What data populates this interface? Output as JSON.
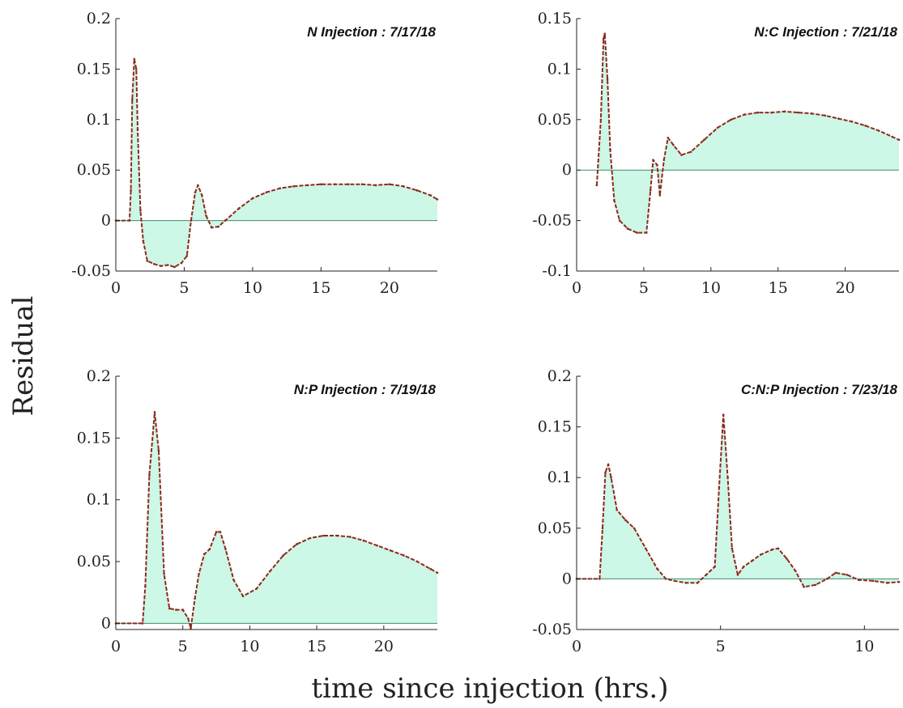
{
  "figure": {
    "ylabel": "Residual",
    "xlabel": "time since injection (hrs.)",
    "fill_color": "#cdf7e6",
    "line_color": "#8b2a1e",
    "zero_line_color": "#3d8f6a"
  },
  "chart_data": [
    {
      "type": "area",
      "title": "N Injection : 7/17/18",
      "xlim": [
        0,
        23.5
      ],
      "ylim": [
        -0.05,
        0.2
      ],
      "xticks": [
        0,
        5,
        10,
        15,
        20
      ],
      "yticks": [
        -0.05,
        0,
        0.05,
        0.1,
        0.15,
        0.2
      ],
      "xtick_labels": [
        "0",
        "5",
        "10",
        "15",
        "20"
      ],
      "ytick_labels": [
        "-0.05",
        "0",
        "0.05",
        "0.1",
        "0.15",
        "0.2"
      ],
      "x": [
        0,
        1.0,
        1.1,
        1.2,
        1.35,
        1.5,
        1.6,
        1.8,
        2.0,
        2.3,
        2.8,
        3.3,
        3.8,
        4.3,
        4.8,
        5.2,
        5.5,
        5.8,
        6.0,
        6.3,
        6.6,
        7.0,
        7.5,
        8.0,
        9.0,
        10.0,
        11.0,
        12.0,
        13.0,
        14.0,
        15.0,
        16.0,
        17.0,
        18.0,
        19.0,
        20.0,
        21.0,
        22.0,
        23.0,
        23.5
      ],
      "y": [
        0,
        0,
        0.03,
        0.12,
        0.16,
        0.15,
        0.09,
        0.01,
        -0.02,
        -0.04,
        -0.043,
        -0.045,
        -0.044,
        -0.046,
        -0.042,
        -0.035,
        0.0,
        0.028,
        0.035,
        0.025,
        0.005,
        -0.007,
        -0.006,
        0.0,
        0.012,
        0.022,
        0.028,
        0.032,
        0.034,
        0.035,
        0.036,
        0.036,
        0.036,
        0.036,
        0.035,
        0.036,
        0.034,
        0.03,
        0.025,
        0.021
      ]
    },
    {
      "type": "area",
      "title": "N:C Injection : 7/21/18",
      "xlim": [
        0,
        24
      ],
      "ylim": [
        -0.1,
        0.15
      ],
      "xticks": [
        0,
        5,
        10,
        15,
        20
      ],
      "yticks": [
        -0.1,
        -0.05,
        0,
        0.05,
        0.1,
        0.15
      ],
      "xtick_labels": [
        "0",
        "5",
        "10",
        "15",
        "20"
      ],
      "ytick_labels": [
        "-0.1",
        "-0.05",
        "0",
        "0.05",
        "0.1",
        "0.15"
      ],
      "x": [
        1.5,
        1.8,
        2.0,
        2.1,
        2.3,
        2.5,
        2.8,
        3.2,
        3.8,
        4.5,
        5.2,
        5.5,
        5.7,
        6.0,
        6.2,
        6.5,
        6.8,
        7.2,
        7.8,
        8.5,
        9.5,
        10.5,
        11.5,
        12.5,
        13.5,
        14.5,
        15.5,
        16.5,
        17.5,
        18.5,
        19.5,
        20.5,
        21.5,
        22.5,
        23.5,
        24.0
      ],
      "y": [
        -0.015,
        0.05,
        0.13,
        0.135,
        0.09,
        0.02,
        -0.03,
        -0.05,
        -0.058,
        -0.062,
        -0.062,
        -0.02,
        0.01,
        0.005,
        -0.025,
        0.01,
        0.032,
        0.025,
        0.015,
        0.018,
        0.03,
        0.042,
        0.05,
        0.055,
        0.057,
        0.057,
        0.058,
        0.057,
        0.056,
        0.054,
        0.051,
        0.048,
        0.044,
        0.039,
        0.033,
        0.03
      ]
    },
    {
      "type": "area",
      "title": "N:P Injection : 7/19/18",
      "xlim": [
        0,
        24
      ],
      "ylim": [
        -0.005,
        0.2
      ],
      "xticks": [
        0,
        5,
        10,
        15,
        20
      ],
      "yticks": [
        0,
        0.05,
        0.1,
        0.15,
        0.2
      ],
      "xtick_labels": [
        "0",
        "5",
        "10",
        "15",
        "20"
      ],
      "ytick_labels": [
        "0",
        "0.05",
        "0.1",
        "0.15",
        "0.2"
      ],
      "x": [
        0,
        2.0,
        2.2,
        2.5,
        2.9,
        3.2,
        3.6,
        4.0,
        4.5,
        5.0,
        5.4,
        5.6,
        5.9,
        6.2,
        6.6,
        7.0,
        7.5,
        7.8,
        8.2,
        8.8,
        9.5,
        10.5,
        11.5,
        12.5,
        13.5,
        14.5,
        15.5,
        16.5,
        17.5,
        18.5,
        19.5,
        20.5,
        21.5,
        22.5,
        23.5,
        24.0
      ],
      "y": [
        0,
        0,
        0.03,
        0.12,
        0.171,
        0.14,
        0.04,
        0.012,
        0.011,
        0.011,
        0.004,
        -0.004,
        0.02,
        0.04,
        0.056,
        0.06,
        0.074,
        0.074,
        0.06,
        0.035,
        0.022,
        0.028,
        0.042,
        0.055,
        0.064,
        0.069,
        0.071,
        0.071,
        0.07,
        0.067,
        0.063,
        0.059,
        0.055,
        0.05,
        0.044,
        0.041
      ]
    },
    {
      "type": "area",
      "title": "C:N:P Injection : 7/23/18",
      "xlim": [
        0,
        11.2
      ],
      "ylim": [
        -0.05,
        0.2
      ],
      "xticks": [
        0,
        5,
        10
      ],
      "yticks": [
        -0.05,
        0,
        0.05,
        0.1,
        0.15,
        0.2
      ],
      "xtick_labels": [
        "0",
        "5",
        "10"
      ],
      "ytick_labels": [
        "-0.05",
        "0",
        "0.05",
        "0.1",
        "0.15",
        "0.2"
      ],
      "x": [
        0,
        0.8,
        0.9,
        1.0,
        1.1,
        1.2,
        1.4,
        1.7,
        2.0,
        2.4,
        2.8,
        3.1,
        3.4,
        3.8,
        4.2,
        4.5,
        4.8,
        4.95,
        5.1,
        5.25,
        5.4,
        5.6,
        5.8,
        6.1,
        6.4,
        6.8,
        7.0,
        7.3,
        7.6,
        7.9,
        8.3,
        8.7,
        9.0,
        9.4,
        9.8,
        10.3,
        10.8,
        11.2
      ],
      "y": [
        0,
        0,
        0.05,
        0.105,
        0.113,
        0.1,
        0.068,
        0.058,
        0.05,
        0.03,
        0.01,
        0.0,
        -0.002,
        -0.004,
        -0.004,
        0.004,
        0.012,
        0.09,
        0.162,
        0.1,
        0.03,
        0.004,
        0.012,
        0.018,
        0.024,
        0.029,
        0.03,
        0.02,
        0.008,
        -0.008,
        -0.006,
        0.0,
        0.006,
        0.004,
        -0.001,
        -0.002,
        -0.004,
        -0.003
      ]
    }
  ]
}
